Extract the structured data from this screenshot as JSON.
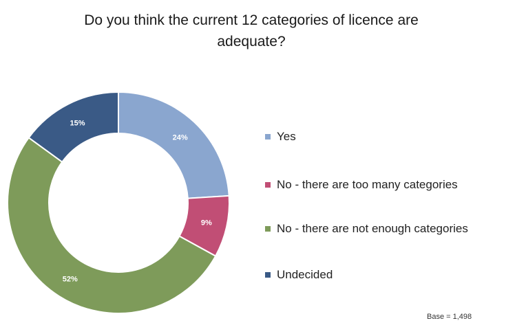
{
  "chart_data": {
    "type": "pie",
    "title": "Do you think the current 12 categories of licence are adequate?",
    "title_lines": [
      "Do you think the current 12 categories of licence are",
      "adequate?"
    ],
    "donut": true,
    "legend_position": "right",
    "categories": [
      "Yes",
      "No - there are too many categories",
      "No - there are not enough categories",
      "Undecided"
    ],
    "values": [
      24,
      9,
      52,
      15
    ],
    "value_labels": [
      "24%",
      "9%",
      "52%",
      "15%"
    ],
    "colors": [
      "#8AA6CF",
      "#C14E75",
      "#7E9B5A",
      "#3A5A86"
    ],
    "note": "Base = 1,498"
  }
}
